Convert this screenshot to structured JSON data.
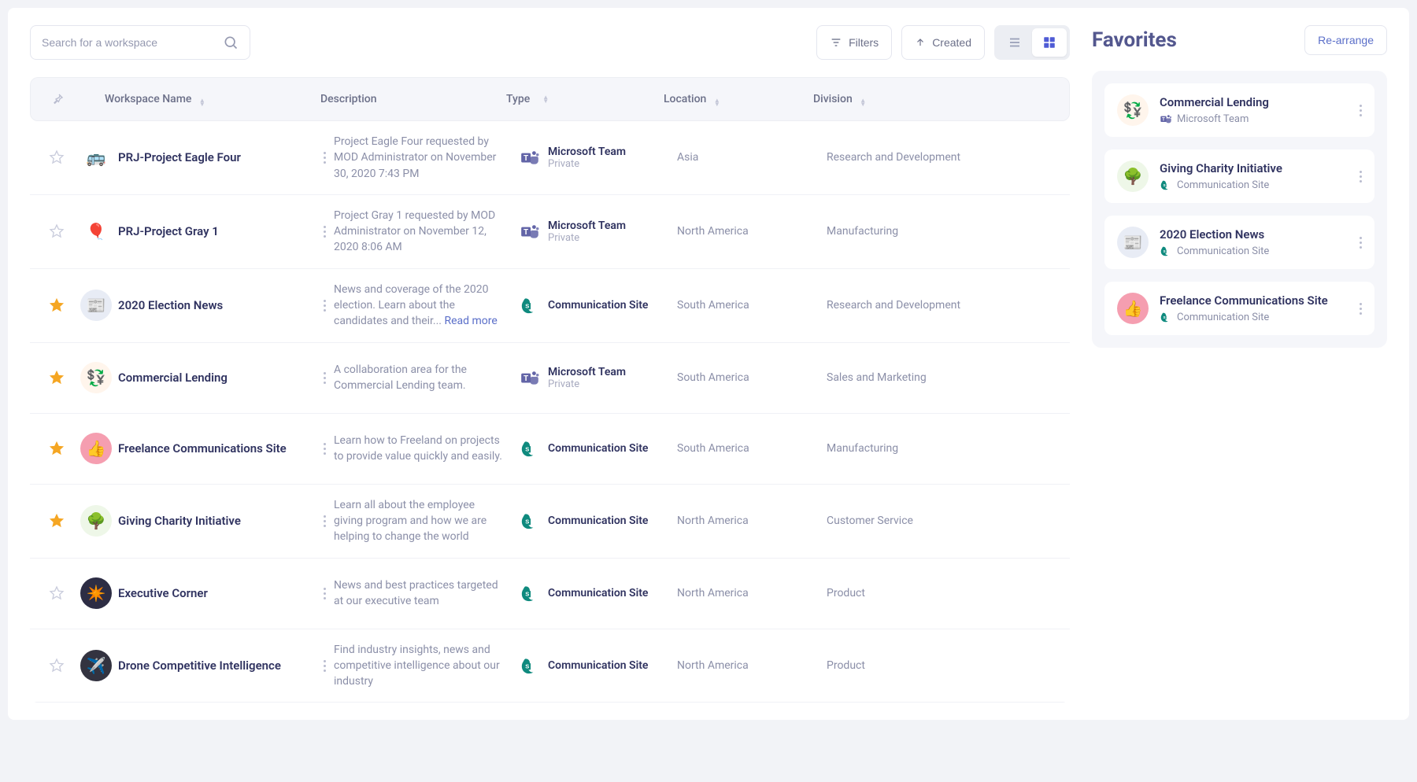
{
  "colors": {
    "page_bg": "#f2f3f7",
    "panel_bg": "#ffffff",
    "border": "#e4e6ef",
    "text_primary": "#303360",
    "text_muted": "#8b8fa8",
    "heading": "#53578e",
    "star_on": "#f5a623",
    "star_off": "#c9ccdc",
    "link": "#5b6fc9",
    "teams_purple": "#6264a7",
    "sp_teal": "#0f8a7e",
    "thead_bg": "#f5f6fa"
  },
  "search": {
    "placeholder": "Search for a workspace"
  },
  "toolbar": {
    "filters_label": "Filters",
    "created_label": "Created",
    "view_list_label": "List view",
    "view_grid_label": "Grid view",
    "active_view": "grid"
  },
  "table": {
    "columns": {
      "name": "Workspace Name",
      "description": "Description",
      "type": "Type",
      "location": "Location",
      "division": "Division"
    },
    "read_more_label": "Read more",
    "rows": [
      {
        "favorite": false,
        "icon_emoji": "🚌",
        "icon_bg": "#ffffff",
        "name": "PRJ-Project Eagle Four",
        "description": "Project Eagle Four requested by MOD Administrator on November 30, 2020 7:43 PM",
        "has_read_more": false,
        "type": "teams",
        "type_label": "Microsoft Team",
        "type_sub": "Private",
        "location": "Asia",
        "division": "Research and Development"
      },
      {
        "favorite": false,
        "icon_emoji": "🎈",
        "icon_bg": "#ffffff",
        "name": "PRJ-Project Gray 1",
        "description": "Project Gray 1 requested by MOD Administrator on November 12, 2020 8:06 AM",
        "has_read_more": false,
        "type": "teams",
        "type_label": "Microsoft Team",
        "type_sub": "Private",
        "location": "North America",
        "division": "Manufacturing"
      },
      {
        "favorite": true,
        "icon_emoji": "📰",
        "icon_bg": "#e8ecf5",
        "name": "2020 Election News",
        "description": "News and coverage of the 2020 election. Learn about the candidates and their... ",
        "has_read_more": true,
        "type": "communication",
        "type_label": "Communication Site",
        "type_sub": "",
        "location": "South America",
        "division": "Research and Development"
      },
      {
        "favorite": true,
        "icon_emoji": "💱",
        "icon_bg": "#fff5ec",
        "name": "Commercial Lending",
        "description": "A collaboration area for the Commercial Lending team.",
        "has_read_more": false,
        "type": "teams",
        "type_label": "Microsoft Team",
        "type_sub": "Private",
        "location": "South America",
        "division": "Sales and Marketing"
      },
      {
        "favorite": true,
        "icon_emoji": "👍",
        "icon_bg": "#f59eb0",
        "name": "Freelance Communications Site",
        "description": "Learn how to Freeland on projects to provide value quickly and easily.",
        "has_read_more": false,
        "type": "communication",
        "type_label": "Communication Site",
        "type_sub": "",
        "location": "South America",
        "division": "Manufacturing"
      },
      {
        "favorite": true,
        "icon_emoji": "🌳",
        "icon_bg": "#eef7e8",
        "name": "Giving Charity Initiative",
        "description": "Learn all about the employee giving program and how we are helping to change the world",
        "has_read_more": false,
        "type": "communication",
        "type_label": "Communication Site",
        "type_sub": "",
        "location": "North America",
        "division": "Customer Service"
      },
      {
        "favorite": false,
        "icon_emoji": "✴️",
        "icon_bg": "#2d2d44",
        "name": "Executive Corner",
        "description": "News and best practices targeted at our executive team",
        "has_read_more": false,
        "type": "communication",
        "type_label": "Communication Site",
        "type_sub": "",
        "location": "North America",
        "division": "Product"
      },
      {
        "favorite": false,
        "icon_emoji": "✈️",
        "icon_bg": "#333340",
        "name": "Drone Competitive Intelligence",
        "description": "Find industry insights, news and competitive intelligence about our industry",
        "has_read_more": false,
        "type": "communication",
        "type_label": "Communication Site",
        "type_sub": "",
        "location": "North America",
        "division": "Product"
      }
    ]
  },
  "favorites_panel": {
    "title": "Favorites",
    "rearrange_label": "Re-arrange",
    "items": [
      {
        "icon_emoji": "💱",
        "icon_bg": "#fff5ec",
        "title": "Commercial Lending",
        "type": "teams",
        "type_label": "Microsoft Team"
      },
      {
        "icon_emoji": "🌳",
        "icon_bg": "#eef7e8",
        "title": "Giving Charity Initiative",
        "type": "communication",
        "type_label": "Communication Site"
      },
      {
        "icon_emoji": "📰",
        "icon_bg": "#e8ecf5",
        "title": "2020 Election News",
        "type": "communication",
        "type_label": "Communication Site"
      },
      {
        "icon_emoji": "👍",
        "icon_bg": "#f59eb0",
        "title": "Freelance Communications Site",
        "type": "communication",
        "type_label": "Communication Site"
      }
    ]
  }
}
